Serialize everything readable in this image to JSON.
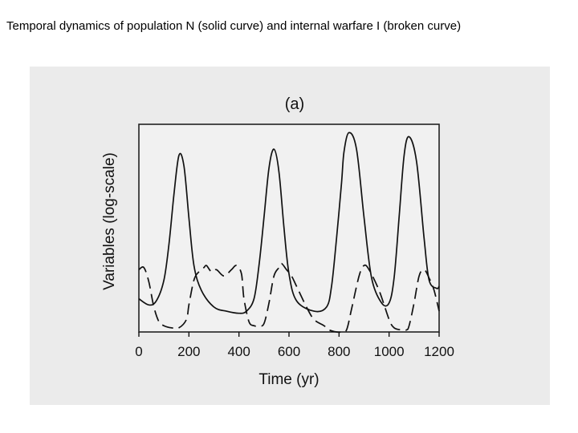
{
  "slide_title": "Temporal dynamics of population N (solid curve) and internal warfare I (broken curve)",
  "chart_data": {
    "type": "line",
    "panel_label": "(a)",
    "xlabel": "Time (yr)",
    "ylabel": "Variables (log-scale)",
    "xlim": [
      0,
      1200
    ],
    "ylim": [
      0,
      1
    ],
    "y_scale": "log",
    "y_ticks_shown": false,
    "x_ticks": [
      0,
      200,
      400,
      600,
      800,
      1000,
      1200
    ],
    "grid": false,
    "colors": {
      "lines": "#111111",
      "background": "#ebebeb"
    },
    "series": [
      {
        "style": "solid",
        "x": [
          0,
          40,
          70,
          100,
          120,
          140,
          160,
          180,
          200,
          220,
          250,
          300,
          350,
          400,
          430,
          460,
          480,
          500,
          520,
          540,
          560,
          580,
          600,
          630,
          700,
          750,
          770,
          790,
          810,
          820,
          840,
          870,
          900,
          930,
          970,
          1000,
          1020,
          1040,
          1060,
          1080,
          1110,
          1140,
          1160,
          1190,
          1200
        ],
        "y": [
          0.16,
          0.13,
          0.15,
          0.25,
          0.42,
          0.66,
          0.85,
          0.8,
          0.55,
          0.32,
          0.2,
          0.12,
          0.1,
          0.09,
          0.1,
          0.16,
          0.32,
          0.55,
          0.79,
          0.88,
          0.77,
          0.5,
          0.28,
          0.15,
          0.1,
          0.12,
          0.22,
          0.45,
          0.72,
          0.87,
          0.96,
          0.88,
          0.55,
          0.26,
          0.14,
          0.14,
          0.26,
          0.55,
          0.85,
          0.94,
          0.82,
          0.45,
          0.25,
          0.21,
          0.22
        ]
      },
      {
        "style": "dashed",
        "x": [
          0,
          20,
          40,
          60,
          80,
          100,
          130,
          160,
          190,
          200,
          220,
          240,
          260,
          270,
          290,
          310,
          340,
          370,
          390,
          410,
          420,
          440,
          460,
          480,
          500,
          520,
          540,
          560,
          570,
          590,
          610,
          630,
          670,
          700,
          740,
          760,
          790,
          810,
          830,
          850,
          880,
          900,
          920,
          960,
          1000,
          1020,
          1050,
          1070,
          1080,
          1100,
          1120,
          1140,
          1160,
          1180,
          1200
        ],
        "y": [
          0.3,
          0.31,
          0.24,
          0.12,
          0.05,
          0.03,
          0.02,
          0.02,
          0.06,
          0.13,
          0.25,
          0.29,
          0.31,
          0.32,
          0.29,
          0.3,
          0.27,
          0.3,
          0.32,
          0.28,
          0.16,
          0.05,
          0.03,
          0.03,
          0.04,
          0.14,
          0.27,
          0.31,
          0.33,
          0.3,
          0.27,
          0.22,
          0.12,
          0.06,
          0.03,
          0.01,
          0.0,
          0.0,
          0.01,
          0.11,
          0.27,
          0.32,
          0.3,
          0.2,
          0.06,
          0.02,
          0.01,
          0.01,
          0.03,
          0.14,
          0.27,
          0.3,
          0.26,
          0.2,
          0.1
        ]
      }
    ]
  }
}
